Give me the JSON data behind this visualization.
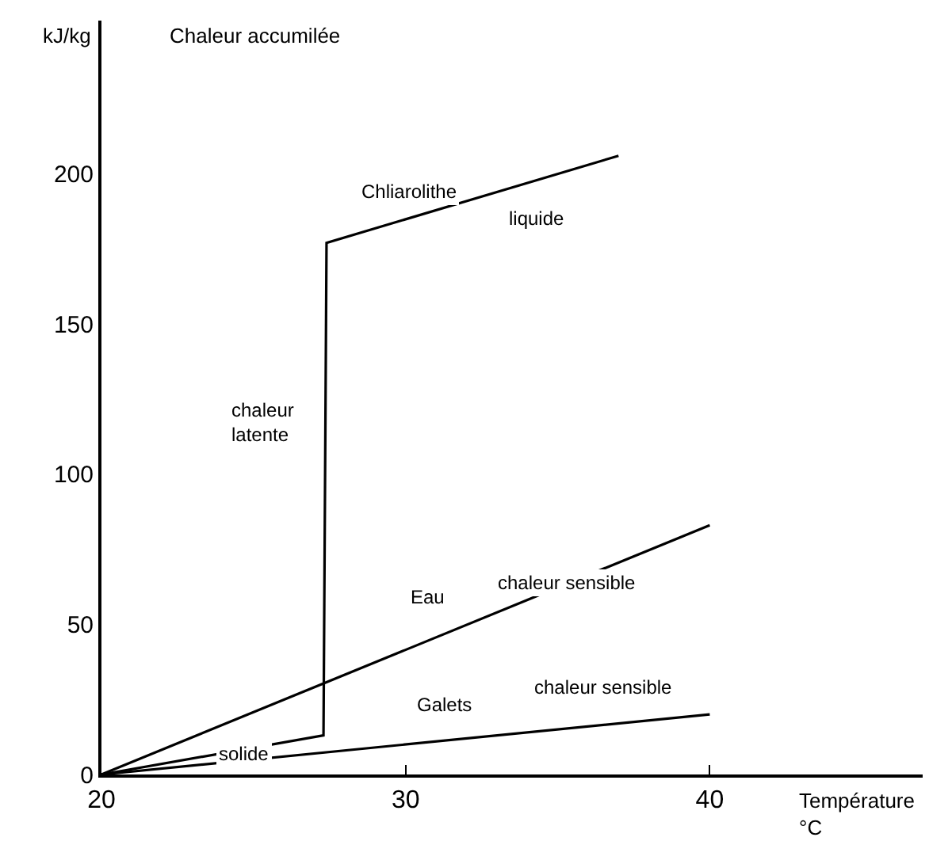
{
  "chart_data": {
    "type": "line",
    "title": "Chaleur accumilée",
    "ylabel": "kJ/kg",
    "xlabel": "Température\n°C",
    "xlim": [
      20,
      47
    ],
    "xticks": [
      20,
      30,
      40
    ],
    "ylim": [
      0,
      251
    ],
    "yticks": [
      0,
      50,
      100,
      150,
      200
    ],
    "marker": "none",
    "line_style": "solid",
    "series": [
      {
        "color": "#000000",
        "x": [
          20,
          27.3,
          27.4,
          37.0
        ],
        "values": [
          0,
          13,
          177,
          206
        ]
      },
      {
        "color": "#000000",
        "x": [
          20,
          40
        ],
        "values": [
          0,
          83
        ]
      },
      {
        "color": "#000000",
        "x": [
          20,
          40
        ],
        "values": [
          0,
          20
        ]
      }
    ],
    "annotations": [
      "Chliarolithe",
      {
        "text": "liquide",
        "x": 34.3,
        "y": 185
      },
      {
        "text": "chaleur\nlatente",
        "x": 25.3,
        "y": 117
      },
      {
        "text": "solide",
        "x": 24.7,
        "y": 7
      },
      {
        "text": "Eau",
        "x": 30.7,
        "y": 59
      },
      "chaleur sensible",
      {
        "text": "Galets",
        "x": 31.3,
        "y": 23
      },
      "chaleur sensible"
    ]
  }
}
